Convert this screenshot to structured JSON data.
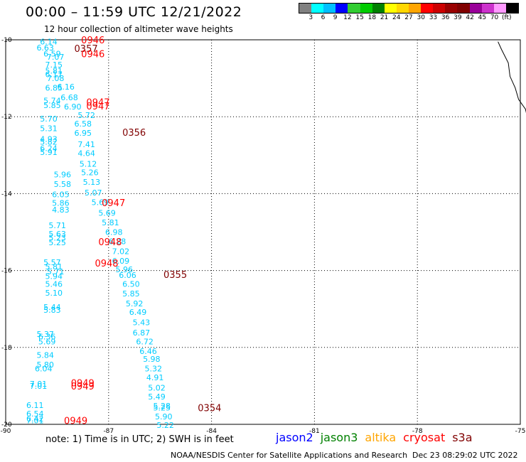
{
  "header": {
    "title": "00:00 – 11:59 UTC 12/21/2022",
    "subtitle": "12 hour collection of altimeter wave heights"
  },
  "legend": {
    "colors": [
      "#808080",
      "#00ffff",
      "#00bfff",
      "#0000ff",
      "#32cd32",
      "#00cc00",
      "#008000",
      "#ffff00",
      "#ffd700",
      "#ffa500",
      "#ff0000",
      "#cc0000",
      "#990000",
      "#800000",
      "#990099",
      "#cc33cc",
      "#ff99ff",
      "#000000"
    ],
    "labels": [
      "3",
      "6",
      "9",
      "12",
      "15",
      "18",
      "21",
      "24",
      "27",
      "30",
      "33",
      "36",
      "39",
      "42",
      "45",
      "70",
      "(ft)"
    ]
  },
  "axes": {
    "lon_ticks": [
      "-90",
      "-87",
      "-84",
      "-81",
      "-78",
      "-75"
    ],
    "lat_ticks": [
      "-10",
      "-12",
      "-14",
      "-16",
      "-18",
      "-20"
    ],
    "lon_range": [
      -90,
      -75
    ],
    "lat_range": [
      -20,
      -10
    ]
  },
  "map_colors": {
    "swh": "#00ccff",
    "time_red": "#ff0000",
    "time_dark": "#800000",
    "coast": "#000000"
  },
  "measurements": [
    {
      "t": "6.14",
      "lon": -89.0,
      "lat": -10.05
    },
    {
      "t": "6.63",
      "lon": -89.1,
      "lat": -10.2
    },
    {
      "t": "6.59",
      "lon": -88.9,
      "lat": -10.36
    },
    {
      "t": "7.07",
      "lon": -88.8,
      "lat": -10.44
    },
    {
      "t": "7.15",
      "lon": -88.85,
      "lat": -10.65
    },
    {
      "t": "5.81",
      "lon": -88.85,
      "lat": -10.8
    },
    {
      "t": "6.17",
      "lon": -88.85,
      "lat": -10.9
    },
    {
      "t": "7.08",
      "lon": -88.8,
      "lat": -11.0
    },
    {
      "t": "6.85",
      "lon": -88.85,
      "lat": -11.25
    },
    {
      "t": "6.16",
      "lon": -88.5,
      "lat": -11.22
    },
    {
      "t": "6.68",
      "lon": -88.4,
      "lat": -11.5
    },
    {
      "t": "5.74",
      "lon": -88.9,
      "lat": -11.58
    },
    {
      "t": "5.85",
      "lon": -88.9,
      "lat": -11.7
    },
    {
      "t": "6.90",
      "lon": -88.3,
      "lat": -11.74
    },
    {
      "t": "5.72",
      "lon": -87.9,
      "lat": -11.96
    },
    {
      "t": "5.70",
      "lon": -89.0,
      "lat": -12.05
    },
    {
      "t": "6.58",
      "lon": -88.0,
      "lat": -12.18
    },
    {
      "t": "5.31",
      "lon": -89.0,
      "lat": -12.3
    },
    {
      "t": "6.95",
      "lon": -88.0,
      "lat": -12.42
    },
    {
      "t": "4.93",
      "lon": -89.0,
      "lat": -12.58
    },
    {
      "t": "5.82",
      "lon": -89.0,
      "lat": -12.65
    },
    {
      "t": "7.41",
      "lon": -87.9,
      "lat": -12.72
    },
    {
      "t": "6.24",
      "lon": -89.0,
      "lat": -12.82
    },
    {
      "t": "5.91",
      "lon": -89.0,
      "lat": -12.92
    },
    {
      "t": "4.64",
      "lon": -87.9,
      "lat": -12.95
    },
    {
      "t": "5.12",
      "lon": -87.85,
      "lat": -13.23
    },
    {
      "t": "5.26",
      "lon": -87.8,
      "lat": -13.45
    },
    {
      "t": "5.96",
      "lon": -88.6,
      "lat": -13.5
    },
    {
      "t": "5.13",
      "lon": -87.75,
      "lat": -13.7
    },
    {
      "t": "5.58",
      "lon": -88.6,
      "lat": -13.75
    },
    {
      "t": "5.07",
      "lon": -87.7,
      "lat": -13.97
    },
    {
      "t": "6.05",
      "lon": -88.65,
      "lat": -14.02
    },
    {
      "t": "5.69",
      "lon": -87.5,
      "lat": -14.22
    },
    {
      "t": "5.86",
      "lon": -88.65,
      "lat": -14.24
    },
    {
      "t": "4.83",
      "lon": -88.65,
      "lat": -14.42
    },
    {
      "t": "5.69",
      "lon": -87.3,
      "lat": -14.5
    },
    {
      "t": "5.81",
      "lon": -87.2,
      "lat": -14.75
    },
    {
      "t": "5.71",
      "lon": -88.75,
      "lat": -14.82
    },
    {
      "t": "6.98",
      "lon": -87.1,
      "lat": -15.0
    },
    {
      "t": "5.63",
      "lon": -88.75,
      "lat": -15.05
    },
    {
      "t": "5.23",
      "lon": -88.75,
      "lat": -15.15
    },
    {
      "t": "6.28",
      "lon": -87.0,
      "lat": -15.24
    },
    {
      "t": "5.25",
      "lon": -88.75,
      "lat": -15.27
    },
    {
      "t": "7.02",
      "lon": -86.9,
      "lat": -15.5
    },
    {
      "t": "6.09",
      "lon": -86.9,
      "lat": -15.75
    },
    {
      "t": "5.57",
      "lon": -88.9,
      "lat": -15.79
    },
    {
      "t": "5.81",
      "lon": -88.85,
      "lat": -15.9
    },
    {
      "t": "5.96",
      "lon": -86.8,
      "lat": -15.97
    },
    {
      "t": "5.71",
      "lon": -88.8,
      "lat": -16.03
    },
    {
      "t": "5.94",
      "lon": -88.85,
      "lat": -16.15
    },
    {
      "t": "6.06",
      "lon": -86.7,
      "lat": -16.12
    },
    {
      "t": "6.50",
      "lon": -86.6,
      "lat": -16.35
    },
    {
      "t": "5.46",
      "lon": -88.85,
      "lat": -16.35
    },
    {
      "t": "5.10",
      "lon": -88.85,
      "lat": -16.58
    },
    {
      "t": "5.85",
      "lon": -86.6,
      "lat": -16.6
    },
    {
      "t": "5.92",
      "lon": -86.5,
      "lat": -16.86
    },
    {
      "t": "5.44",
      "lon": -88.9,
      "lat": -16.95
    },
    {
      "t": "5.83",
      "lon": -88.9,
      "lat": -17.02
    },
    {
      "t": "6.49",
      "lon": -86.4,
      "lat": -17.08
    },
    {
      "t": "5.43",
      "lon": -86.3,
      "lat": -17.35
    },
    {
      "t": "6.87",
      "lon": -86.3,
      "lat": -17.62
    },
    {
      "t": "5.37",
      "lon": -89.1,
      "lat": -17.65
    },
    {
      "t": "6.36",
      "lon": -89.05,
      "lat": -17.72
    },
    {
      "t": "5.69",
      "lon": -89.05,
      "lat": -17.85
    },
    {
      "t": "6.72",
      "lon": -86.2,
      "lat": -17.85
    },
    {
      "t": "6.46",
      "lon": -86.1,
      "lat": -18.1
    },
    {
      "t": "5.84",
      "lon": -89.1,
      "lat": -18.2
    },
    {
      "t": "5.98",
      "lon": -86.0,
      "lat": -18.3
    },
    {
      "t": "5.80",
      "lon": -89.1,
      "lat": -18.45
    },
    {
      "t": "5.32",
      "lon": -85.95,
      "lat": -18.55
    },
    {
      "t": "6.04",
      "lon": -89.15,
      "lat": -18.55
    },
    {
      "t": "4.91",
      "lon": -85.9,
      "lat": -18.78
    },
    {
      "t": "7.01",
      "lon": -89.3,
      "lat": -18.95
    },
    {
      "t": "7.01",
      "lon": -89.3,
      "lat": -19.0
    },
    {
      "t": "5.02",
      "lon": -85.85,
      "lat": -19.05
    },
    {
      "t": "5.49",
      "lon": -85.85,
      "lat": -19.28
    },
    {
      "t": "6.11",
      "lon": -89.4,
      "lat": -19.5
    },
    {
      "t": "5.28",
      "lon": -85.7,
      "lat": -19.52
    },
    {
      "t": "5.25",
      "lon": -85.7,
      "lat": -19.57
    },
    {
      "t": "6.54",
      "lon": -89.4,
      "lat": -19.72
    },
    {
      "t": "5.90",
      "lon": -85.65,
      "lat": -19.8
    },
    {
      "t": "6.42",
      "lon": -89.4,
      "lat": -19.85
    },
    {
      "t": "7.01",
      "lon": -89.4,
      "lat": -19.9
    },
    {
      "t": "5.22",
      "lon": -85.6,
      "lat": -20.02
    }
  ],
  "times": [
    {
      "t": "0946",
      "lon": -87.8,
      "lat": -10.0,
      "c": "red"
    },
    {
      "t": "0357",
      "lon": -88.0,
      "lat": -10.22,
      "c": "dark"
    },
    {
      "t": "0946",
      "lon": -87.8,
      "lat": -10.36,
      "c": "red"
    },
    {
      "t": "0947",
      "lon": -87.65,
      "lat": -11.62,
      "c": "red"
    },
    {
      "t": "0947",
      "lon": -87.65,
      "lat": -11.72,
      "c": "red"
    },
    {
      "t": "0356",
      "lon": -86.6,
      "lat": -12.4,
      "c": "dark"
    },
    {
      "t": "0947",
      "lon": -87.2,
      "lat": -14.23,
      "c": "red"
    },
    {
      "t": "0948",
      "lon": -87.3,
      "lat": -15.25,
      "c": "red"
    },
    {
      "t": "0948",
      "lon": -87.4,
      "lat": -15.8,
      "c": "red"
    },
    {
      "t": "0355",
      "lon": -85.4,
      "lat": -16.1,
      "c": "dark"
    },
    {
      "t": "0949",
      "lon": -88.1,
      "lat": -18.92,
      "c": "red"
    },
    {
      "t": "0949",
      "lon": -88.1,
      "lat": -19.0,
      "c": "red"
    },
    {
      "t": "0354",
      "lon": -84.4,
      "lat": -19.57,
      "c": "dark"
    },
    {
      "t": "0949",
      "lon": -88.3,
      "lat": -19.9,
      "c": "red"
    }
  ],
  "footer": {
    "note": "note: 1) Time is in UTC; 2) SWH is in feet",
    "satellites": [
      {
        "name": "jason2",
        "color": "#0000ff"
      },
      {
        "name": "jason3",
        "color": "#008000"
      },
      {
        "name": "altika",
        "color": "#ffa500"
      },
      {
        "name": "cryosat",
        "color": "#ff0000"
      },
      {
        "name": "s3a",
        "color": "#800000"
      }
    ],
    "credit": "NOAA/NESDIS Center for Satellite Applications and Research",
    "timestamp": "Dec 23 08:29:02 UTC 2022"
  }
}
